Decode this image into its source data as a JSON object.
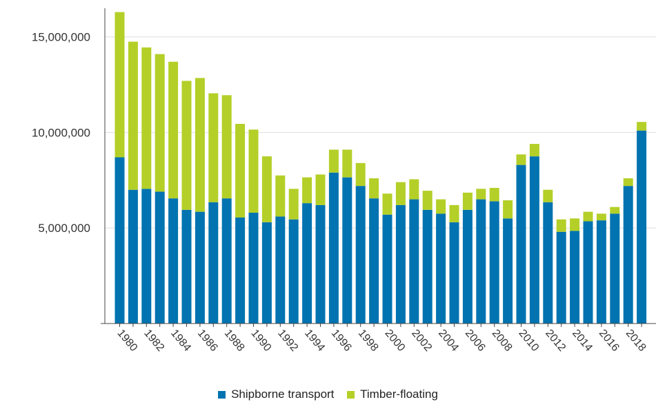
{
  "chart_data": {
    "type": "bar",
    "stacked": true,
    "title": "",
    "xlabel": "",
    "ylabel": "",
    "ylim": [
      0,
      16500000
    ],
    "yticks": [
      5000000,
      10000000,
      15000000
    ],
    "ytick_labels": [
      "5,000,000",
      "10,000,000",
      "15,000,000"
    ],
    "grid": true,
    "legend_position": "bottom",
    "categories": [
      "1980",
      "1981",
      "1982",
      "1983",
      "1984",
      "1985",
      "1986",
      "1987",
      "1988",
      "1989",
      "1990",
      "1991",
      "1992",
      "1993",
      "1994",
      "1995",
      "1996",
      "1997",
      "1998",
      "1999",
      "2000",
      "2001",
      "2002",
      "2003",
      "2004",
      "2005",
      "2006",
      "2007",
      "2008",
      "2009",
      "2010",
      "2011",
      "2012",
      "2013",
      "2014",
      "2015",
      "2016",
      "2017",
      "2018",
      "2019"
    ],
    "tick_labels": [
      "1980",
      "1982",
      "1984",
      "1986",
      "1988",
      "1990",
      "1992",
      "1994",
      "1996",
      "1998",
      "2000",
      "2002",
      "2004",
      "2006",
      "2008",
      "2010",
      "2012",
      "2014",
      "2016",
      "2018"
    ],
    "series": [
      {
        "name": "Shipborne transport",
        "color": "#0073b0",
        "values": [
          8700000,
          7000000,
          7050000,
          6900000,
          6550000,
          5950000,
          5850000,
          6350000,
          6550000,
          5550000,
          5800000,
          5300000,
          5600000,
          5450000,
          6300000,
          6200000,
          7900000,
          7650000,
          7200000,
          6550000,
          5700000,
          6200000,
          6500000,
          5950000,
          5750000,
          5300000,
          5950000,
          6500000,
          6400000,
          5500000,
          8300000,
          8750000,
          6350000,
          4800000,
          4850000,
          5350000,
          5400000,
          5750000,
          7200000,
          10100000
        ]
      },
      {
        "name": "Timber-floating",
        "color": "#b4cf28",
        "values": [
          7600000,
          7750000,
          7400000,
          7200000,
          7150000,
          6750000,
          7000000,
          5700000,
          5400000,
          4900000,
          4350000,
          3450000,
          2150000,
          1600000,
          1350000,
          1600000,
          1200000,
          1450000,
          1200000,
          1050000,
          1100000,
          1200000,
          1050000,
          1000000,
          750000,
          900000,
          900000,
          550000,
          700000,
          950000,
          550000,
          650000,
          650000,
          650000,
          650000,
          500000,
          350000,
          350000,
          400000,
          450000
        ]
      }
    ]
  }
}
